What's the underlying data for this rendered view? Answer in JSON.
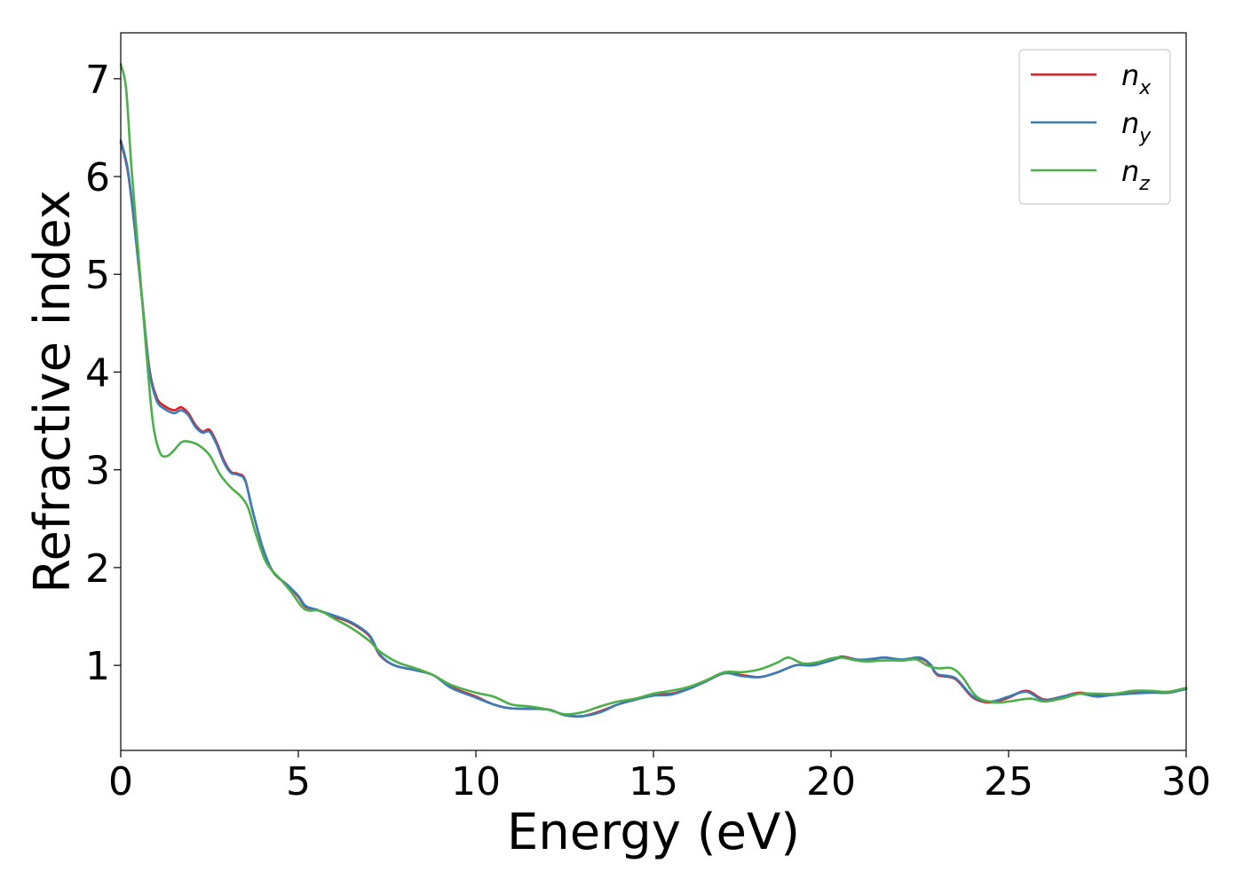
{
  "chart_data": {
    "type": "line",
    "xlabel": "Energy (eV)",
    "ylabel": "Refractive index",
    "xlim": [
      0,
      30
    ],
    "ylim": [
      0.13,
      7.47
    ],
    "xticks": [
      0,
      5,
      10,
      15,
      20,
      25,
      30
    ],
    "xtick_labels": [
      "0",
      "5",
      "10",
      "15",
      "20",
      "25",
      "30"
    ],
    "yticks": [
      1,
      2,
      3,
      4,
      5,
      6,
      7
    ],
    "ytick_labels": [
      "1",
      "2",
      "3",
      "4",
      "5",
      "6",
      "7"
    ],
    "grid": false,
    "legend_position": "top-right",
    "series": [
      {
        "name": "n",
        "subscript": "x",
        "color": "#e41a1c",
        "points": [
          [
            0,
            6.35
          ],
          [
            0.2,
            6.05
          ],
          [
            0.4,
            5.45
          ],
          [
            0.6,
            4.75
          ],
          [
            0.8,
            4.05
          ],
          [
            1.0,
            3.75
          ],
          [
            1.2,
            3.66
          ],
          [
            1.5,
            3.61
          ],
          [
            1.7,
            3.64
          ],
          [
            1.9,
            3.58
          ],
          [
            2.1,
            3.46
          ],
          [
            2.3,
            3.39
          ],
          [
            2.5,
            3.41
          ],
          [
            2.7,
            3.28
          ],
          [
            2.9,
            3.1
          ],
          [
            3.1,
            2.98
          ],
          [
            3.3,
            2.96
          ],
          [
            3.5,
            2.9
          ],
          [
            3.7,
            2.6
          ],
          [
            4.0,
            2.2
          ],
          [
            4.3,
            1.95
          ],
          [
            4.7,
            1.82
          ],
          [
            5.0,
            1.7
          ],
          [
            5.2,
            1.6
          ],
          [
            5.5,
            1.57
          ],
          [
            6.0,
            1.5
          ],
          [
            6.5,
            1.43
          ],
          [
            7.0,
            1.3
          ],
          [
            7.3,
            1.1
          ],
          [
            7.7,
            1.0
          ],
          [
            8.3,
            0.95
          ],
          [
            8.8,
            0.9
          ],
          [
            9.3,
            0.78
          ],
          [
            10.0,
            0.68
          ],
          [
            10.5,
            0.6
          ],
          [
            11.0,
            0.56
          ],
          [
            12.0,
            0.55
          ],
          [
            12.5,
            0.49
          ],
          [
            13.0,
            0.48
          ],
          [
            13.5,
            0.53
          ],
          [
            14.0,
            0.6
          ],
          [
            14.5,
            0.65
          ],
          [
            15.0,
            0.7
          ],
          [
            15.5,
            0.71
          ],
          [
            16.0,
            0.76
          ],
          [
            16.5,
            0.84
          ],
          [
            17.0,
            0.92
          ],
          [
            17.5,
            0.9
          ],
          [
            18.0,
            0.88
          ],
          [
            18.5,
            0.93
          ],
          [
            19.0,
            1.0
          ],
          [
            19.5,
            1.01
          ],
          [
            20.0,
            1.05
          ],
          [
            20.3,
            1.09
          ],
          [
            20.7,
            1.06
          ],
          [
            21.0,
            1.05
          ],
          [
            21.5,
            1.08
          ],
          [
            22.0,
            1.05
          ],
          [
            22.5,
            1.07
          ],
          [
            22.8,
            1.0
          ],
          [
            23.0,
            0.9
          ],
          [
            23.5,
            0.86
          ],
          [
            24.0,
            0.67
          ],
          [
            24.5,
            0.62
          ],
          [
            25.0,
            0.67
          ],
          [
            25.5,
            0.74
          ],
          [
            26.0,
            0.65
          ],
          [
            26.5,
            0.68
          ],
          [
            27.0,
            0.72
          ],
          [
            27.5,
            0.69
          ],
          [
            28.0,
            0.7
          ],
          [
            29.0,
            0.73
          ],
          [
            29.5,
            0.72
          ],
          [
            30.0,
            0.76
          ]
        ]
      },
      {
        "name": "n",
        "subscript": "y",
        "color": "#377eb8",
        "points": [
          [
            0,
            6.37
          ],
          [
            0.2,
            6.07
          ],
          [
            0.4,
            5.46
          ],
          [
            0.6,
            4.75
          ],
          [
            0.8,
            4.03
          ],
          [
            1.0,
            3.72
          ],
          [
            1.2,
            3.63
          ],
          [
            1.5,
            3.58
          ],
          [
            1.7,
            3.61
          ],
          [
            1.9,
            3.56
          ],
          [
            2.1,
            3.44
          ],
          [
            2.3,
            3.38
          ],
          [
            2.5,
            3.39
          ],
          [
            2.7,
            3.26
          ],
          [
            2.9,
            3.08
          ],
          [
            3.1,
            2.97
          ],
          [
            3.3,
            2.95
          ],
          [
            3.5,
            2.89
          ],
          [
            3.7,
            2.6
          ],
          [
            4.0,
            2.2
          ],
          [
            4.3,
            1.95
          ],
          [
            4.7,
            1.82
          ],
          [
            5.0,
            1.71
          ],
          [
            5.2,
            1.61
          ],
          [
            5.5,
            1.57
          ],
          [
            6.0,
            1.51
          ],
          [
            6.5,
            1.44
          ],
          [
            7.0,
            1.31
          ],
          [
            7.3,
            1.11
          ],
          [
            7.7,
            1.0
          ],
          [
            8.3,
            0.95
          ],
          [
            8.8,
            0.9
          ],
          [
            9.3,
            0.77
          ],
          [
            10.0,
            0.67
          ],
          [
            10.5,
            0.6
          ],
          [
            11.0,
            0.56
          ],
          [
            12.0,
            0.55
          ],
          [
            12.5,
            0.49
          ],
          [
            13.0,
            0.48
          ],
          [
            13.5,
            0.52
          ],
          [
            14.0,
            0.6
          ],
          [
            14.5,
            0.65
          ],
          [
            15.0,
            0.69
          ],
          [
            15.5,
            0.7
          ],
          [
            16.0,
            0.76
          ],
          [
            16.5,
            0.84
          ],
          [
            17.0,
            0.92
          ],
          [
            17.5,
            0.89
          ],
          [
            18.0,
            0.88
          ],
          [
            18.5,
            0.93
          ],
          [
            19.0,
            1.0
          ],
          [
            19.5,
            1.0
          ],
          [
            20.0,
            1.05
          ],
          [
            20.3,
            1.08
          ],
          [
            20.7,
            1.06
          ],
          [
            21.0,
            1.06
          ],
          [
            21.5,
            1.08
          ],
          [
            22.0,
            1.06
          ],
          [
            22.5,
            1.08
          ],
          [
            22.8,
            1.01
          ],
          [
            23.0,
            0.91
          ],
          [
            23.5,
            0.87
          ],
          [
            24.0,
            0.68
          ],
          [
            24.5,
            0.63
          ],
          [
            25.0,
            0.68
          ],
          [
            25.5,
            0.73
          ],
          [
            26.0,
            0.64
          ],
          [
            26.5,
            0.68
          ],
          [
            27.0,
            0.71
          ],
          [
            27.5,
            0.68
          ],
          [
            28.0,
            0.7
          ],
          [
            29.0,
            0.72
          ],
          [
            29.5,
            0.72
          ],
          [
            30.0,
            0.76
          ]
        ]
      },
      {
        "name": "n",
        "subscript": "z",
        "color": "#4daf4a",
        "points": [
          [
            0,
            7.15
          ],
          [
            0.15,
            6.9
          ],
          [
            0.3,
            6.1
          ],
          [
            0.5,
            5.2
          ],
          [
            0.7,
            4.3
          ],
          [
            0.9,
            3.5
          ],
          [
            1.1,
            3.18
          ],
          [
            1.3,
            3.14
          ],
          [
            1.5,
            3.2
          ],
          [
            1.7,
            3.28
          ],
          [
            1.9,
            3.29
          ],
          [
            2.2,
            3.25
          ],
          [
            2.5,
            3.15
          ],
          [
            2.8,
            2.95
          ],
          [
            3.1,
            2.82
          ],
          [
            3.4,
            2.72
          ],
          [
            3.6,
            2.6
          ],
          [
            3.8,
            2.35
          ],
          [
            4.1,
            2.05
          ],
          [
            4.5,
            1.88
          ],
          [
            4.8,
            1.75
          ],
          [
            5.1,
            1.6
          ],
          [
            5.3,
            1.56
          ],
          [
            5.6,
            1.56
          ],
          [
            6.0,
            1.48
          ],
          [
            6.5,
            1.38
          ],
          [
            7.0,
            1.25
          ],
          [
            7.3,
            1.14
          ],
          [
            7.8,
            1.03
          ],
          [
            8.3,
            0.97
          ],
          [
            8.8,
            0.9
          ],
          [
            9.3,
            0.8
          ],
          [
            10.0,
            0.72
          ],
          [
            10.5,
            0.68
          ],
          [
            11.0,
            0.6
          ],
          [
            11.5,
            0.58
          ],
          [
            12.0,
            0.55
          ],
          [
            12.5,
            0.5
          ],
          [
            13.0,
            0.52
          ],
          [
            13.5,
            0.58
          ],
          [
            14.0,
            0.63
          ],
          [
            14.5,
            0.66
          ],
          [
            15.0,
            0.71
          ],
          [
            15.5,
            0.74
          ],
          [
            16.0,
            0.78
          ],
          [
            16.5,
            0.85
          ],
          [
            17.0,
            0.93
          ],
          [
            17.5,
            0.93
          ],
          [
            18.0,
            0.96
          ],
          [
            18.5,
            1.03
          ],
          [
            18.8,
            1.08
          ],
          [
            19.2,
            1.02
          ],
          [
            19.6,
            1.03
          ],
          [
            20.0,
            1.07
          ],
          [
            20.3,
            1.08
          ],
          [
            20.7,
            1.05
          ],
          [
            21.0,
            1.04
          ],
          [
            21.5,
            1.05
          ],
          [
            22.0,
            1.05
          ],
          [
            22.4,
            1.06
          ],
          [
            22.7,
            1.0
          ],
          [
            23.0,
            0.97
          ],
          [
            23.4,
            0.97
          ],
          [
            23.7,
            0.88
          ],
          [
            24.1,
            0.68
          ],
          [
            24.6,
            0.62
          ],
          [
            25.0,
            0.63
          ],
          [
            25.6,
            0.66
          ],
          [
            26.0,
            0.63
          ],
          [
            26.5,
            0.66
          ],
          [
            27.0,
            0.71
          ],
          [
            27.5,
            0.71
          ],
          [
            28.0,
            0.71
          ],
          [
            28.5,
            0.74
          ],
          [
            29.0,
            0.74
          ],
          [
            29.5,
            0.73
          ],
          [
            30.0,
            0.77
          ]
        ]
      }
    ]
  }
}
